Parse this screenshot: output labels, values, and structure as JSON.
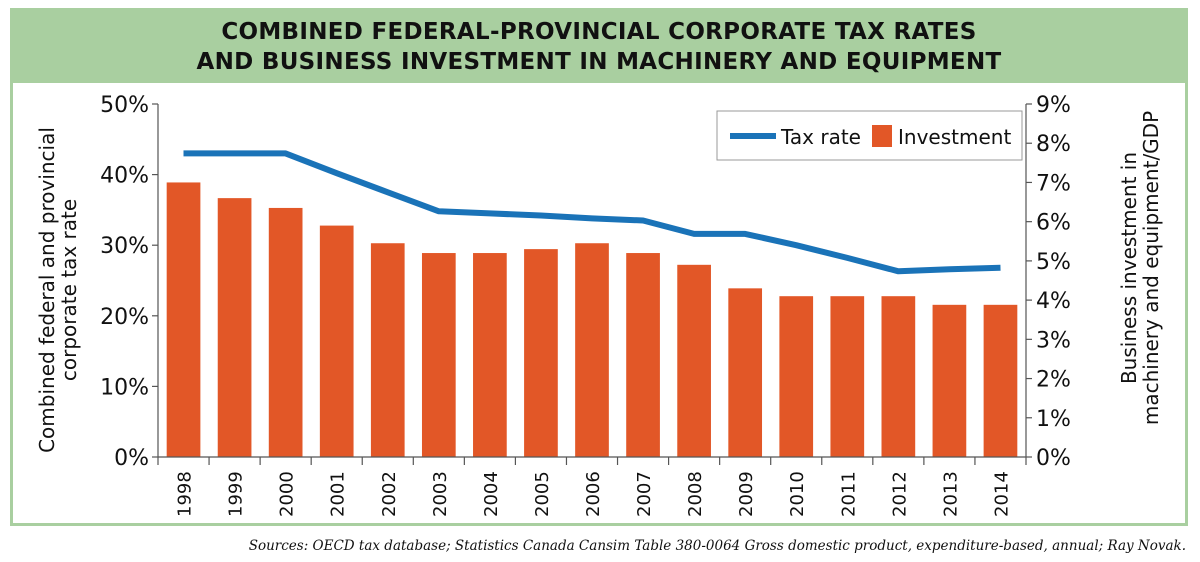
{
  "chart_data": {
    "type": "bar",
    "title": [
      "COMBINED FEDERAL-PROVINCIAL CORPORATE TAX RATES",
      "AND BUSINESS INVESTMENT IN MACHINERY AND EQUIPMENT"
    ],
    "categories": [
      "1998",
      "1999",
      "2000",
      "2001",
      "2002",
      "2003",
      "2004",
      "2005",
      "2006",
      "2007",
      "2008",
      "2009",
      "2010",
      "2011",
      "2012",
      "2013",
      "2014"
    ],
    "series": [
      {
        "name": "Tax rate",
        "type": "line",
        "axis": "left",
        "color": "#1a73b8",
        "values": [
          43.0,
          43.0,
          43.0,
          40.2,
          37.5,
          34.8,
          34.5,
          34.2,
          33.8,
          33.5,
          31.6,
          31.6,
          30.0,
          28.2,
          26.3,
          26.6,
          26.8
        ]
      },
      {
        "name": "Investment",
        "type": "bar",
        "axis": "right",
        "color": "#e25727",
        "values": [
          7.0,
          6.6,
          6.35,
          5.9,
          5.45,
          5.2,
          5.2,
          5.3,
          5.45,
          5.2,
          4.9,
          4.3,
          4.1,
          4.1,
          4.1,
          3.88,
          3.88
        ]
      }
    ],
    "y_left": {
      "label": [
        "Combined federal and provincial",
        "corporate tax rate"
      ],
      "ylim": [
        0,
        50
      ],
      "ticks": [
        "0%",
        "10%",
        "20%",
        "30%",
        "40%",
        "50%"
      ]
    },
    "y_right": {
      "label": [
        "Business investment in",
        "machinery and equipment/GDP"
      ],
      "ylim": [
        0,
        9
      ],
      "ticks": [
        "0%",
        "1%",
        "2%",
        "3%",
        "4%",
        "5%",
        "6%",
        "7%",
        "8%",
        "9%"
      ]
    },
    "legend": {
      "placement": "top-right"
    }
  },
  "source": "Sources: OECD tax database; Statistics Canada Cansim Table 380-0064 Gross domestic product, expenditure-based, annual; Ray Novak."
}
